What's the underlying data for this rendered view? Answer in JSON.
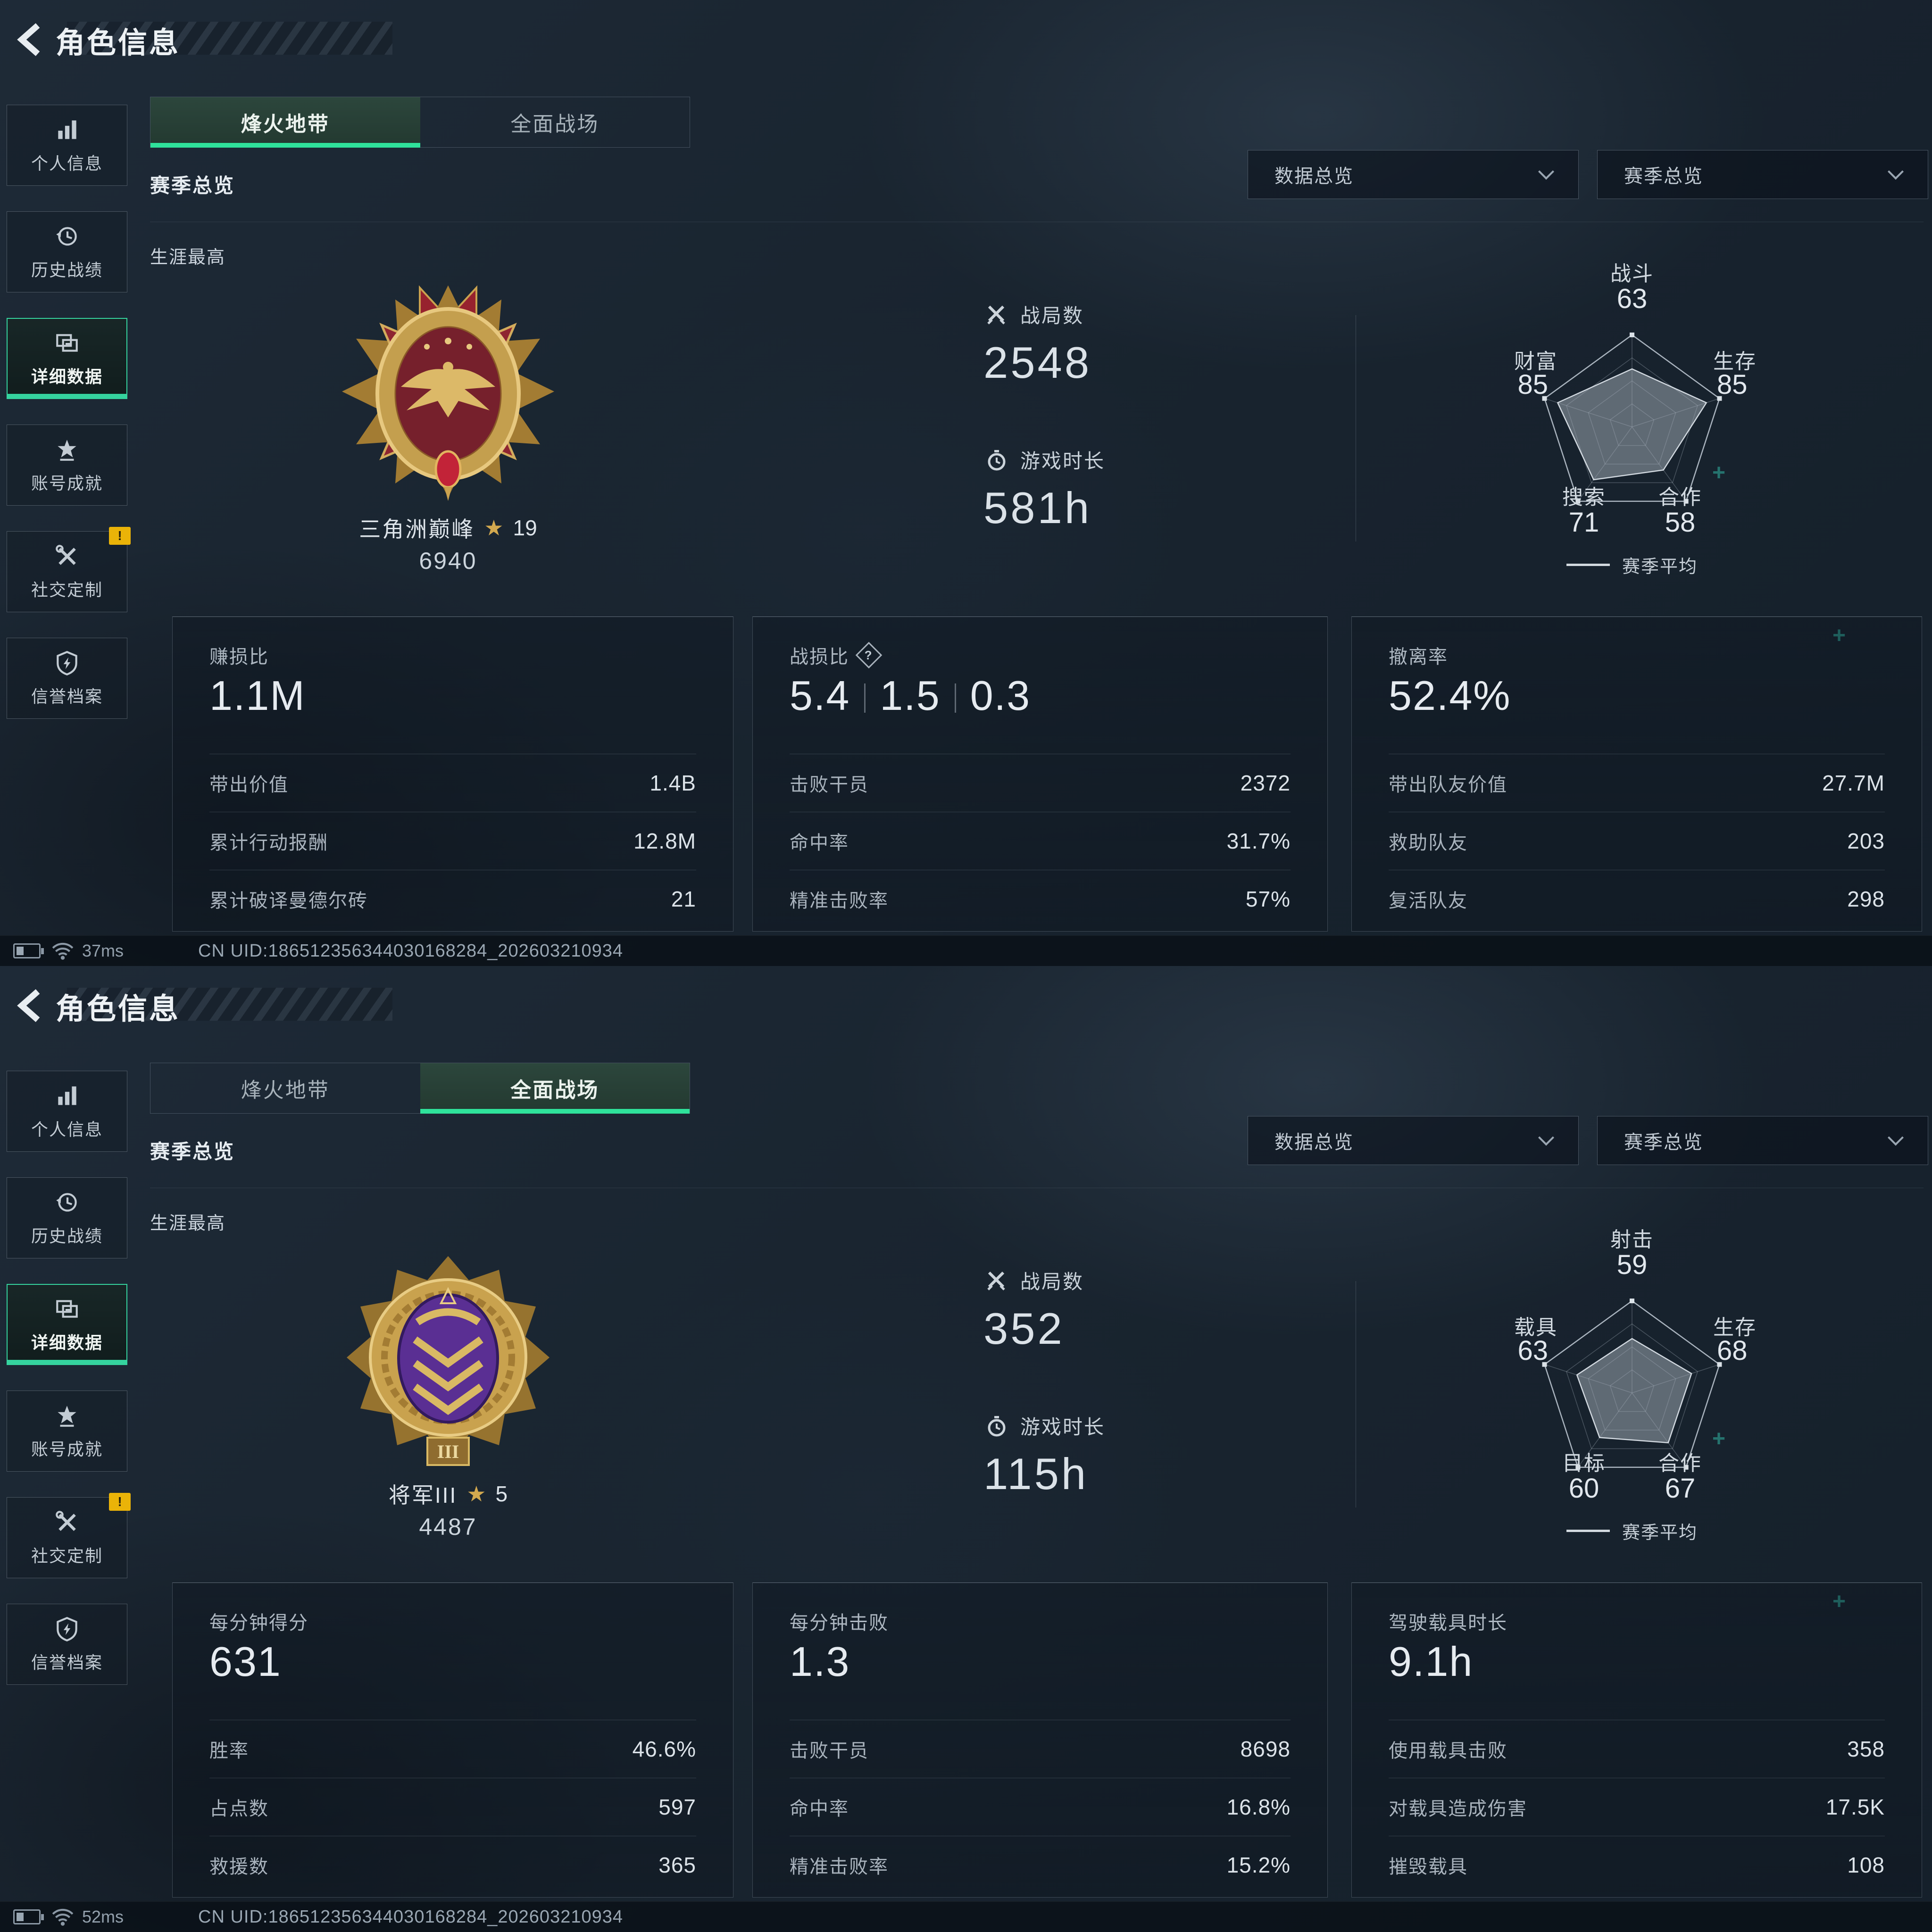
{
  "colors": {
    "accent_green": "#2fe29b",
    "warning_yellow": "#eab308",
    "gold": "#d3a94f"
  },
  "panels": [
    {
      "title": "角色信息",
      "back_icon": "chevron-left-icon",
      "sidebar": [
        {
          "label": "个人信息",
          "icon": "bar-chart-icon"
        },
        {
          "label": "历史战绩",
          "icon": "history-clock-icon"
        },
        {
          "label": "详细数据",
          "icon": "documents-icon",
          "active": true
        },
        {
          "label": "账号成就",
          "icon": "achievement-star-icon"
        },
        {
          "label": "社交定制",
          "icon": "tools-icon",
          "warning": "!"
        },
        {
          "label": "信誉档案",
          "icon": "shield-bolt-icon"
        }
      ],
      "tabs": [
        {
          "label": "烽火地带",
          "active": true
        },
        {
          "label": "全面战场",
          "active": false
        }
      ],
      "section_title": "赛季总览",
      "dropdown1": "数据总览",
      "dropdown2": "赛季总览",
      "career_best": "生涯最高",
      "medal": {
        "name": "三角洲巅峰",
        "stars": "19",
        "score": "6940",
        "icon": "medal-red-gold"
      },
      "matches_label": "战局数",
      "matches_value": "2548",
      "playtime_label": "游戏时长",
      "playtime_value": "581h",
      "radar": {
        "type": "radar",
        "max": 100,
        "legend": "赛季平均",
        "axes": [
          {
            "label": "战斗",
            "value": 63
          },
          {
            "label": "生存",
            "value": 85
          },
          {
            "label": "合作",
            "value": 58
          },
          {
            "label": "搜索",
            "value": 71
          },
          {
            "label": "财富",
            "value": 85
          }
        ]
      },
      "cards": [
        {
          "title": "赚损比",
          "values": [
            "1.1M"
          ],
          "rows": [
            {
              "label": "带出价值",
              "value": "1.4B"
            },
            {
              "label": "累计行动报酬",
              "value": "12.8M"
            },
            {
              "label": "累计破译曼德尔砖",
              "value": "21"
            }
          ]
        },
        {
          "title": "战损比",
          "help": "?",
          "values": [
            "5.4",
            "1.5",
            "0.3"
          ],
          "rows": [
            {
              "label": "击败干员",
              "value": "2372"
            },
            {
              "label": "命中率",
              "value": "31.7%"
            },
            {
              "label": "精准击败率",
              "value": "57%"
            }
          ]
        },
        {
          "title": "撤离率",
          "values": [
            "52.4%"
          ],
          "rows": [
            {
              "label": "带出队友价值",
              "value": "27.7M"
            },
            {
              "label": "救助队友",
              "value": "203"
            },
            {
              "label": "复活队友",
              "value": "298"
            }
          ]
        }
      ],
      "status": {
        "ping": "37ms",
        "uid": "CN UID:186512356344030168284_202603210934"
      }
    },
    {
      "title": "角色信息",
      "back_icon": "chevron-left-icon",
      "sidebar": [
        {
          "label": "个人信息",
          "icon": "bar-chart-icon"
        },
        {
          "label": "历史战绩",
          "icon": "history-clock-icon"
        },
        {
          "label": "详细数据",
          "icon": "documents-icon",
          "active": true
        },
        {
          "label": "账号成就",
          "icon": "achievement-star-icon"
        },
        {
          "label": "社交定制",
          "icon": "tools-icon",
          "warning": "!"
        },
        {
          "label": "信誉档案",
          "icon": "shield-bolt-icon"
        }
      ],
      "tabs": [
        {
          "label": "烽火地带",
          "active": false
        },
        {
          "label": "全面战场",
          "active": true
        }
      ],
      "section_title": "赛季总览",
      "dropdown1": "数据总览",
      "dropdown2": "赛季总览",
      "career_best": "生涯最高",
      "medal": {
        "name": "将军III",
        "stars": "5",
        "score": "4487",
        "icon": "medal-gold-purple"
      },
      "matches_label": "战局数",
      "matches_value": "352",
      "playtime_label": "游戏时长",
      "playtime_value": "115h",
      "radar": {
        "type": "radar",
        "max": 100,
        "legend": "赛季平均",
        "axes": [
          {
            "label": "射击",
            "value": 59
          },
          {
            "label": "生存",
            "value": 68
          },
          {
            "label": "合作",
            "value": 67
          },
          {
            "label": "目标",
            "value": 60
          },
          {
            "label": "载具",
            "value": 63
          }
        ]
      },
      "cards": [
        {
          "title": "每分钟得分",
          "values": [
            "631"
          ],
          "rows": [
            {
              "label": "胜率",
              "value": "46.6%"
            },
            {
              "label": "占点数",
              "value": "597"
            },
            {
              "label": "救援数",
              "value": "365"
            }
          ]
        },
        {
          "title": "每分钟击败",
          "values": [
            "1.3"
          ],
          "rows": [
            {
              "label": "击败干员",
              "value": "8698"
            },
            {
              "label": "命中率",
              "value": "16.8%"
            },
            {
              "label": "精准击败率",
              "value": "15.2%"
            }
          ]
        },
        {
          "title": "驾驶载具时长",
          "values": [
            "9.1h"
          ],
          "rows": [
            {
              "label": "使用载具击败",
              "value": "358"
            },
            {
              "label": "对载具造成伤害",
              "value": "17.5K"
            },
            {
              "label": "摧毁载具",
              "value": "108"
            }
          ]
        }
      ],
      "status": {
        "ping": "52ms",
        "uid": "CN UID:186512356344030168284_202603210934"
      }
    }
  ],
  "chart_data": [
    {
      "type": "radar",
      "title": "烽火地带赛季平均",
      "legend_position": "bottom",
      "legend": "赛季平均",
      "max": 100,
      "categories": [
        "战斗",
        "生存",
        "合作",
        "搜索",
        "财富"
      ],
      "values": [
        63,
        85,
        58,
        71,
        85
      ]
    },
    {
      "type": "radar",
      "title": "全面战场赛季平均",
      "legend_position": "bottom",
      "legend": "赛季平均",
      "max": 100,
      "categories": [
        "射击",
        "生存",
        "合作",
        "目标",
        "载具"
      ],
      "values": [
        59,
        68,
        67,
        60,
        63
      ]
    }
  ]
}
